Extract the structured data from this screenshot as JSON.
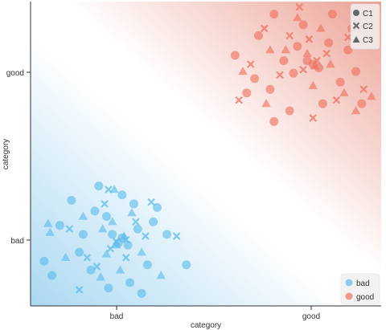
{
  "chart_data": {
    "type": "scatter",
    "xlabel": "category",
    "ylabel": "category",
    "x_ticks": [
      "bad",
      "good"
    ],
    "y_ticks": [
      "bad",
      "good"
    ],
    "xlim": [
      -0.45,
      1.35
    ],
    "ylim": [
      -0.35,
      1.35
    ],
    "background": "diagonal decision-region gradient, light blue (bottom-left) to light red (top-right)",
    "colors": {
      "bad": "#5bbbea",
      "good": "#ee6f5f",
      "region_bad": "#a9d8f2",
      "region_good": "#eca194",
      "axis": "#333333"
    },
    "legend_classes": {
      "placement": "bottom-right",
      "entries": [
        {
          "label": "bad",
          "color": "#5bbbea"
        },
        {
          "label": "good",
          "color": "#ee6f5f"
        }
      ]
    },
    "legend_shapes": {
      "placement": "top-right",
      "entries": [
        {
          "label": "C1",
          "marker": "circle"
        },
        {
          "label": "C2",
          "marker": "x"
        },
        {
          "label": "C3",
          "marker": "triangle"
        }
      ]
    },
    "points": [
      {
        "x": 0.0,
        "y": 0.0,
        "label": "bad",
        "marker": "circle"
      },
      {
        "x": 0.02,
        "y": 0.03,
        "label": "bad",
        "marker": "circle"
      },
      {
        "x": -0.03,
        "y": 0.05,
        "label": "bad",
        "marker": "circle"
      },
      {
        "x": 0.05,
        "y": -0.01,
        "label": "bad",
        "marker": "circle"
      },
      {
        "x": -0.06,
        "y": 0.15,
        "label": "bad",
        "marker": "circle"
      },
      {
        "x": 0.08,
        "y": 0.22,
        "label": "bad",
        "marker": "circle"
      },
      {
        "x": -0.12,
        "y": 0.18,
        "label": "bad",
        "marker": "circle"
      },
      {
        "x": 0.18,
        "y": 0.12,
        "label": "bad",
        "marker": "circle"
      },
      {
        "x": -0.2,
        "y": -0.05,
        "label": "bad",
        "marker": "circle"
      },
      {
        "x": 0.15,
        "y": -0.12,
        "label": "bad",
        "marker": "circle"
      },
      {
        "x": -0.3,
        "y": 0.1,
        "label": "bad",
        "marker": "circle"
      },
      {
        "x": 0.25,
        "y": 0.05,
        "label": "bad",
        "marker": "circle"
      },
      {
        "x": -0.24,
        "y": 0.24,
        "label": "bad",
        "marker": "circle"
      },
      {
        "x": 0.1,
        "y": 0.08,
        "label": "bad",
        "marker": "circle"
      },
      {
        "x": -0.14,
        "y": -0.15,
        "label": "bad",
        "marker": "circle"
      },
      {
        "x": 0.06,
        "y": -0.22,
        "label": "bad",
        "marker": "circle"
      },
      {
        "x": -0.05,
        "y": -0.25,
        "label": "bad",
        "marker": "circle"
      },
      {
        "x": 0.35,
        "y": -0.12,
        "label": "bad",
        "marker": "circle"
      },
      {
        "x": -0.34,
        "y": -0.18,
        "label": "bad",
        "marker": "circle"
      },
      {
        "x": 0.02,
        "y": 0.27,
        "label": "bad",
        "marker": "circle"
      },
      {
        "x": -0.1,
        "y": 0.32,
        "label": "bad",
        "marker": "circle"
      },
      {
        "x": 0.2,
        "y": 0.2,
        "label": "bad",
        "marker": "circle"
      },
      {
        "x": -0.38,
        "y": -0.1,
        "label": "bad",
        "marker": "circle"
      },
      {
        "x": 0.12,
        "y": -0.28,
        "label": "bad",
        "marker": "circle"
      },
      {
        "x": -0.18,
        "y": 0.05,
        "label": "bad",
        "marker": "circle"
      },
      {
        "x": -0.01,
        "y": 0.01,
        "label": "bad",
        "marker": "x"
      },
      {
        "x": 0.04,
        "y": 0.02,
        "label": "bad",
        "marker": "x"
      },
      {
        "x": -0.04,
        "y": -0.03,
        "label": "bad",
        "marker": "x"
      },
      {
        "x": 0.09,
        "y": 0.12,
        "label": "bad",
        "marker": "x"
      },
      {
        "x": -0.07,
        "y": 0.22,
        "label": "bad",
        "marker": "x"
      },
      {
        "x": -0.05,
        "y": 0.3,
        "label": "bad",
        "marker": "x"
      },
      {
        "x": 0.14,
        "y": 0.04,
        "label": "bad",
        "marker": "x"
      },
      {
        "x": -0.16,
        "y": -0.08,
        "label": "bad",
        "marker": "x"
      },
      {
        "x": 0.3,
        "y": 0.04,
        "label": "bad",
        "marker": "x"
      },
      {
        "x": -0.25,
        "y": 0.08,
        "label": "bad",
        "marker": "x"
      },
      {
        "x": 0.04,
        "y": -0.08,
        "label": "bad",
        "marker": "x"
      },
      {
        "x": -0.2,
        "y": -0.26,
        "label": "bad",
        "marker": "x"
      },
      {
        "x": -0.11,
        "y": -0.13,
        "label": "bad",
        "marker": "x"
      },
      {
        "x": 0.17,
        "y": 0.23,
        "label": "bad",
        "marker": "x"
      },
      {
        "x": -0.01,
        "y": -0.01,
        "label": "bad",
        "marker": "triangle"
      },
      {
        "x": 0.03,
        "y": 0.04,
        "label": "bad",
        "marker": "triangle"
      },
      {
        "x": -0.03,
        "y": 0.12,
        "label": "bad",
        "marker": "triangle"
      },
      {
        "x": 0.07,
        "y": 0.17,
        "label": "bad",
        "marker": "triangle"
      },
      {
        "x": -0.08,
        "y": 0.08,
        "label": "bad",
        "marker": "triangle"
      },
      {
        "x": 0.12,
        "y": -0.05,
        "label": "bad",
        "marker": "triangle"
      },
      {
        "x": -0.18,
        "y": 0.15,
        "label": "bad",
        "marker": "triangle"
      },
      {
        "x": -0.35,
        "y": 0.06,
        "label": "bad",
        "marker": "triangle"
      },
      {
        "x": -0.36,
        "y": 0.11,
        "label": "bad",
        "marker": "triangle"
      },
      {
        "x": 0.22,
        "y": -0.18,
        "label": "bad",
        "marker": "triangle"
      },
      {
        "x": -0.09,
        "y": -0.19,
        "label": "bad",
        "marker": "triangle"
      },
      {
        "x": -0.02,
        "y": 0.3,
        "label": "bad",
        "marker": "triangle"
      },
      {
        "x": -0.27,
        "y": -0.08,
        "label": "bad",
        "marker": "triangle"
      },
      {
        "x": 0.01,
        "y": -0.15,
        "label": "bad",
        "marker": "triangle"
      },
      {
        "x": -0.06,
        "y": -0.06,
        "label": "bad",
        "marker": "triangle"
      },
      {
        "x": 0.0,
        "y": 0.0,
        "label": "good",
        "marker": "circle",
        "cx": 1.0,
        "cy": 1.0
      },
      {
        "x": 1.0,
        "y": 1.0,
        "label": "good",
        "marker": "circle"
      },
      {
        "x": 0.97,
        "y": 1.02,
        "label": "good",
        "marker": "circle"
      },
      {
        "x": 1.03,
        "y": 0.98,
        "label": "good",
        "marker": "circle"
      },
      {
        "x": 0.92,
        "y": 1.1,
        "label": "good",
        "marker": "circle"
      },
      {
        "x": 1.08,
        "y": 1.12,
        "label": "good",
        "marker": "circle"
      },
      {
        "x": 0.85,
        "y": 1.02,
        "label": "good",
        "marker": "circle"
      },
      {
        "x": 1.14,
        "y": 0.9,
        "label": "good",
        "marker": "circle"
      },
      {
        "x": 0.78,
        "y": 0.86,
        "label": "good",
        "marker": "circle"
      },
      {
        "x": 0.72,
        "y": 1.16,
        "label": "good",
        "marker": "circle"
      },
      {
        "x": 1.22,
        "y": 0.96,
        "label": "good",
        "marker": "circle"
      },
      {
        "x": 0.6,
        "y": 1.05,
        "label": "good",
        "marker": "circle"
      },
      {
        "x": 0.8,
        "y": 0.68,
        "label": "good",
        "marker": "circle"
      },
      {
        "x": 1.05,
        "y": 0.78,
        "label": "good",
        "marker": "circle"
      },
      {
        "x": 0.95,
        "y": 1.22,
        "label": "good",
        "marker": "circle"
      },
      {
        "x": 0.8,
        "y": 1.28,
        "label": "good",
        "marker": "circle"
      },
      {
        "x": 1.1,
        "y": 1.28,
        "label": "good",
        "marker": "circle"
      },
      {
        "x": 0.88,
        "y": 0.74,
        "label": "good",
        "marker": "circle"
      },
      {
        "x": 1.25,
        "y": 0.78,
        "label": "good",
        "marker": "circle"
      },
      {
        "x": 0.66,
        "y": 0.84,
        "label": "good",
        "marker": "circle"
      },
      {
        "x": 0.9,
        "y": 0.95,
        "label": "good",
        "marker": "circle"
      },
      {
        "x": 1.18,
        "y": 1.08,
        "label": "good",
        "marker": "circle"
      },
      {
        "x": 0.7,
        "y": 0.92,
        "label": "good",
        "marker": "circle"
      },
      {
        "x": 1.2,
        "y": 1.2,
        "label": "good",
        "marker": "circle"
      },
      {
        "x": 1.02,
        "y": 1.02,
        "label": "good",
        "marker": "x"
      },
      {
        "x": 0.95,
        "y": 0.97,
        "label": "good",
        "marker": "x"
      },
      {
        "x": 1.07,
        "y": 1.06,
        "label": "good",
        "marker": "x"
      },
      {
        "x": 0.88,
        "y": 1.16,
        "label": "good",
        "marker": "x"
      },
      {
        "x": 0.93,
        "y": 1.32,
        "label": "good",
        "marker": "x"
      },
      {
        "x": 0.68,
        "y": 1.0,
        "label": "good",
        "marker": "x"
      },
      {
        "x": 0.62,
        "y": 0.8,
        "label": "good",
        "marker": "x"
      },
      {
        "x": 1.12,
        "y": 0.8,
        "label": "good",
        "marker": "x"
      },
      {
        "x": 1.18,
        "y": 1.15,
        "label": "good",
        "marker": "x"
      },
      {
        "x": 0.83,
        "y": 0.94,
        "label": "good",
        "marker": "x"
      },
      {
        "x": 1.0,
        "y": 0.7,
        "label": "good",
        "marker": "x"
      },
      {
        "x": 0.75,
        "y": 1.2,
        "label": "good",
        "marker": "x"
      },
      {
        "x": 1.26,
        "y": 0.86,
        "label": "good",
        "marker": "x"
      },
      {
        "x": 0.98,
        "y": 1.14,
        "label": "good",
        "marker": "x"
      },
      {
        "x": 1.01,
        "y": 0.99,
        "label": "good",
        "marker": "triangle"
      },
      {
        "x": 0.97,
        "y": 1.06,
        "label": "good",
        "marker": "triangle"
      },
      {
        "x": 1.09,
        "y": 1.0,
        "label": "good",
        "marker": "triangle"
      },
      {
        "x": 0.86,
        "y": 1.08,
        "label": "good",
        "marker": "triangle"
      },
      {
        "x": 0.78,
        "y": 1.08,
        "label": "good",
        "marker": "triangle"
      },
      {
        "x": 0.92,
        "y": 1.26,
        "label": "good",
        "marker": "triangle"
      },
      {
        "x": 1.04,
        "y": 1.2,
        "label": "good",
        "marker": "triangle"
      },
      {
        "x": 0.76,
        "y": 0.78,
        "label": "good",
        "marker": "triangle"
      },
      {
        "x": 1.16,
        "y": 0.84,
        "label": "good",
        "marker": "triangle"
      },
      {
        "x": 1.0,
        "y": 0.88,
        "label": "good",
        "marker": "triangle"
      },
      {
        "x": 1.3,
        "y": 0.82,
        "label": "good",
        "marker": "triangle"
      },
      {
        "x": 0.64,
        "y": 0.96,
        "label": "good",
        "marker": "triangle"
      },
      {
        "x": 1.22,
        "y": 0.74,
        "label": "good",
        "marker": "triangle"
      }
    ]
  }
}
